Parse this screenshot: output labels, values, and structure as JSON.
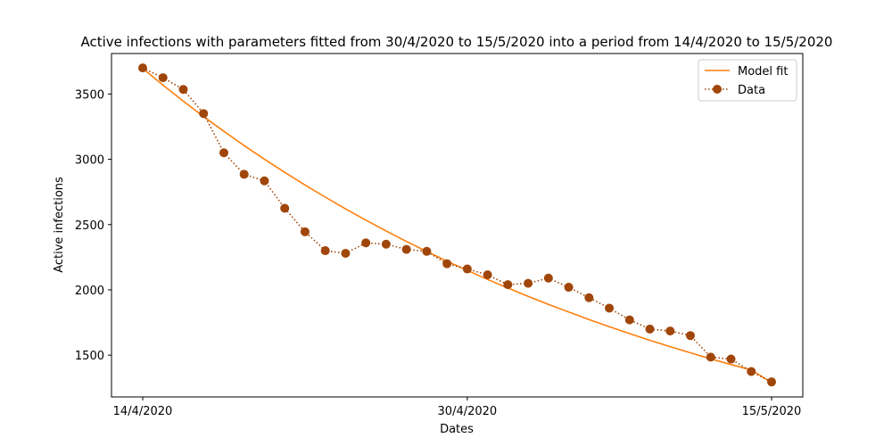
{
  "chart_data": {
    "type": "line",
    "title": "Active infections with parameters fitted from 30/4/2020 to 15/5/2020 into a period from 14/4/2020 to 15/5/2020",
    "xlabel": "Dates",
    "ylabel": "Active infections",
    "x_tick_labels": [
      "14/4/2020",
      "30/4/2020",
      "15/5/2020"
    ],
    "y_ticks": [
      1500,
      2000,
      2500,
      3000,
      3500
    ],
    "ylim": [
      1180,
      3810
    ],
    "grid": false,
    "legend_position": "top-right",
    "x": [
      "14/4/2020",
      "15/4/2020",
      "16/4/2020",
      "17/4/2020",
      "18/4/2020",
      "19/4/2020",
      "20/4/2020",
      "21/4/2020",
      "22/4/2020",
      "23/4/2020",
      "24/4/2020",
      "25/4/2020",
      "26/4/2020",
      "27/4/2020",
      "28/4/2020",
      "29/4/2020",
      "30/4/2020",
      "1/5/2020",
      "2/5/2020",
      "3/5/2020",
      "4/5/2020",
      "5/5/2020",
      "6/5/2020",
      "7/5/2020",
      "8/5/2020",
      "9/5/2020",
      "10/5/2020",
      "11/5/2020",
      "12/5/2020",
      "13/5/2020",
      "14/5/2020",
      "15/5/2020"
    ],
    "series": [
      {
        "name": "Model fit",
        "color": "#ff7f0e",
        "style": "solid",
        "values": [
          3695,
          3568,
          3445,
          3327,
          3214,
          3105,
          3000,
          2900,
          2803,
          2710,
          2620,
          2534,
          2451,
          2371,
          2294,
          2220,
          2149,
          2080,
          2014,
          1950,
          1889,
          1830,
          1773,
          1718,
          1665,
          1614,
          1565,
          1518,
          1472,
          1428,
          1386,
          1290
        ]
      },
      {
        "name": "Data",
        "color": "#a0460a",
        "style": "dotted-markers",
        "values": [
          3700,
          3625,
          3535,
          3350,
          3050,
          2885,
          2835,
          2625,
          2445,
          2300,
          2280,
          2360,
          2350,
          2310,
          2295,
          2200,
          2160,
          2115,
          2040,
          2050,
          2090,
          2020,
          1940,
          1860,
          1770,
          1700,
          1685,
          1650,
          1485,
          1470,
          1375,
          1295
        ]
      }
    ]
  }
}
